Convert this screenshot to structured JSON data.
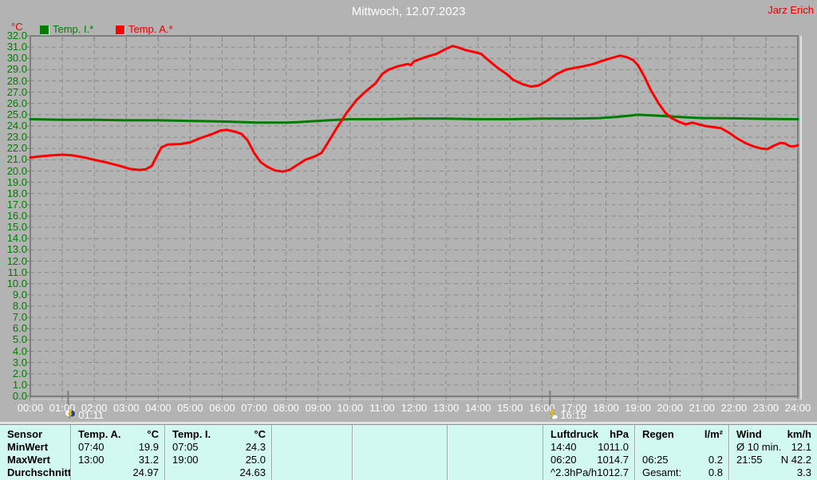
{
  "header": {
    "title": "Mittwoch, 12.07.2023",
    "author": "Jarz Erich"
  },
  "legend": [
    {
      "label": "Temp. I.*",
      "color": "#007c00"
    },
    {
      "label": "Temp. A.*",
      "color": "#ff0000"
    }
  ],
  "chart_data": {
    "type": "line",
    "title": "Mittwoch, 12.07.2023",
    "ylabel": "°C",
    "xlabel": "",
    "grid": true,
    "y_axis": {
      "min": 0,
      "max": 32,
      "step": 1
    },
    "x_axis": {
      "labels": [
        "00:00",
        "01:00",
        "02:00",
        "03:00",
        "04:00",
        "05:00",
        "06:00",
        "07:00",
        "08:00",
        "09:00",
        "10:00",
        "11:00",
        "12:00",
        "13:00",
        "14:00",
        "15:00",
        "16:00",
        "17:00",
        "18:00",
        "19:00",
        "20:00",
        "21:00",
        "22:00",
        "23:00",
        "24:00"
      ]
    },
    "series": [
      {
        "name": "Temp. I.*",
        "color": "#007c00",
        "points": [
          [
            0,
            24.6
          ],
          [
            1,
            24.55
          ],
          [
            2,
            24.55
          ],
          [
            3,
            24.5
          ],
          [
            4,
            24.5
          ],
          [
            5,
            24.45
          ],
          [
            6,
            24.4
          ],
          [
            6.6,
            24.35
          ],
          [
            7.1,
            24.3
          ],
          [
            7.6,
            24.3
          ],
          [
            8,
            24.3
          ],
          [
            8.4,
            24.35
          ],
          [
            9,
            24.45
          ],
          [
            9.6,
            24.55
          ],
          [
            10,
            24.6
          ],
          [
            11,
            24.6
          ],
          [
            12,
            24.65
          ],
          [
            13,
            24.65
          ],
          [
            14,
            24.6
          ],
          [
            15,
            24.6
          ],
          [
            16,
            24.65
          ],
          [
            17,
            24.65
          ],
          [
            17.8,
            24.7
          ],
          [
            18.3,
            24.8
          ],
          [
            18.7,
            24.9
          ],
          [
            19,
            25.0
          ],
          [
            19.4,
            24.95
          ],
          [
            20,
            24.85
          ],
          [
            20.6,
            24.75
          ],
          [
            21,
            24.7
          ],
          [
            22,
            24.68
          ],
          [
            23,
            24.63
          ],
          [
            24,
            24.6
          ]
        ]
      },
      {
        "name": "Temp. A.*",
        "color": "#ff0000",
        "points": [
          [
            0,
            21.2
          ],
          [
            0.3,
            21.3
          ],
          [
            0.7,
            21.4
          ],
          [
            1.0,
            21.45
          ],
          [
            1.3,
            21.4
          ],
          [
            1.7,
            21.2
          ],
          [
            2.0,
            21.0
          ],
          [
            2.4,
            20.75
          ],
          [
            2.8,
            20.45
          ],
          [
            3.1,
            20.2
          ],
          [
            3.4,
            20.1
          ],
          [
            3.6,
            20.15
          ],
          [
            3.8,
            20.45
          ],
          [
            3.95,
            21.3
          ],
          [
            4.1,
            22.1
          ],
          [
            4.3,
            22.35
          ],
          [
            4.7,
            22.4
          ],
          [
            5.0,
            22.55
          ],
          [
            5.3,
            22.9
          ],
          [
            5.7,
            23.3
          ],
          [
            5.95,
            23.6
          ],
          [
            6.15,
            23.65
          ],
          [
            6.4,
            23.5
          ],
          [
            6.6,
            23.3
          ],
          [
            6.8,
            22.7
          ],
          [
            7.0,
            21.6
          ],
          [
            7.2,
            20.8
          ],
          [
            7.4,
            20.4
          ],
          [
            7.65,
            20.05
          ],
          [
            7.9,
            19.95
          ],
          [
            8.1,
            20.1
          ],
          [
            8.3,
            20.45
          ],
          [
            8.6,
            21.0
          ],
          [
            8.9,
            21.3
          ],
          [
            9.1,
            21.6
          ],
          [
            9.3,
            22.5
          ],
          [
            9.6,
            23.9
          ],
          [
            9.9,
            25.2
          ],
          [
            10.2,
            26.3
          ],
          [
            10.5,
            27.1
          ],
          [
            10.8,
            27.8
          ],
          [
            11.0,
            28.6
          ],
          [
            11.2,
            29.0
          ],
          [
            11.5,
            29.3
          ],
          [
            11.8,
            29.5
          ],
          [
            11.9,
            29.4
          ],
          [
            12.0,
            29.75
          ],
          [
            12.4,
            30.15
          ],
          [
            12.7,
            30.4
          ],
          [
            13.0,
            30.85
          ],
          [
            13.2,
            31.1
          ],
          [
            13.35,
            31.0
          ],
          [
            13.6,
            30.75
          ],
          [
            13.9,
            30.55
          ],
          [
            14.1,
            30.4
          ],
          [
            14.3,
            29.9
          ],
          [
            14.6,
            29.2
          ],
          [
            14.9,
            28.6
          ],
          [
            15.1,
            28.1
          ],
          [
            15.4,
            27.7
          ],
          [
            15.65,
            27.5
          ],
          [
            15.9,
            27.6
          ],
          [
            16.15,
            28.0
          ],
          [
            16.45,
            28.6
          ],
          [
            16.75,
            29.0
          ],
          [
            17.0,
            29.15
          ],
          [
            17.3,
            29.3
          ],
          [
            17.6,
            29.5
          ],
          [
            17.9,
            29.8
          ],
          [
            18.2,
            30.05
          ],
          [
            18.45,
            30.25
          ],
          [
            18.65,
            30.1
          ],
          [
            18.85,
            29.85
          ],
          [
            19.0,
            29.4
          ],
          [
            19.2,
            28.4
          ],
          [
            19.4,
            27.2
          ],
          [
            19.65,
            26.0
          ],
          [
            19.85,
            25.2
          ],
          [
            20.05,
            24.7
          ],
          [
            20.3,
            24.35
          ],
          [
            20.5,
            24.15
          ],
          [
            20.7,
            24.3
          ],
          [
            20.9,
            24.15
          ],
          [
            21.1,
            24.0
          ],
          [
            21.35,
            23.9
          ],
          [
            21.6,
            23.8
          ],
          [
            21.85,
            23.4
          ],
          [
            22.1,
            22.9
          ],
          [
            22.35,
            22.5
          ],
          [
            22.6,
            22.2
          ],
          [
            22.85,
            22.0
          ],
          [
            23.05,
            21.95
          ],
          [
            23.25,
            22.25
          ],
          [
            23.45,
            22.5
          ],
          [
            23.6,
            22.45
          ],
          [
            23.75,
            22.2
          ],
          [
            23.9,
            22.2
          ],
          [
            24,
            22.3
          ]
        ]
      }
    ],
    "markers": [
      {
        "time": "01:11",
        "hour": 1.1833,
        "icon": "night-storm"
      },
      {
        "time": "16:15",
        "hour": 16.25,
        "icon": "storm"
      }
    ]
  },
  "table": {
    "row_headers": [
      "Sensor",
      "MinWert",
      "MaxWert",
      "Durchschnitt"
    ],
    "columns": [
      {
        "header": "Temp. A.",
        "unit": "°C",
        "min": [
          "07:40",
          "19.9"
        ],
        "max": [
          "13:00",
          "31.2"
        ],
        "avg": [
          "",
          "24.97"
        ]
      },
      {
        "header": "Temp. I.",
        "unit": "°C",
        "min": [
          "07:05",
          "24.3"
        ],
        "max": [
          "19:00",
          "25.0"
        ],
        "avg": [
          "",
          "24.63"
        ]
      },
      {
        "header": "",
        "unit": "",
        "min": [
          "",
          ""
        ],
        "max": [
          "",
          ""
        ],
        "avg": [
          "",
          ""
        ]
      },
      {
        "header": "",
        "unit": "",
        "min": [
          "",
          ""
        ],
        "max": [
          "",
          ""
        ],
        "avg": [
          "",
          ""
        ]
      },
      {
        "header": "",
        "unit": "",
        "min": [
          "",
          ""
        ],
        "max": [
          "",
          ""
        ],
        "avg": [
          "",
          ""
        ]
      },
      {
        "header": "Luftdruck",
        "unit": "hPa",
        "min": [
          "14:40",
          "1011.0"
        ],
        "max": [
          "06:20",
          "1014.7"
        ],
        "avg": [
          "^2.3hPa/h",
          "1012.7"
        ]
      },
      {
        "header": "Regen",
        "unit": "l/m²",
        "min": [
          "",
          ""
        ],
        "max": [
          "06:25",
          "0.2"
        ],
        "avg": [
          "Gesamt:",
          "0.8"
        ]
      },
      {
        "header": "Wind",
        "unit": "km/h",
        "min": [
          "Ø 10 min.",
          "12.1"
        ],
        "max": [
          "21:55",
          "N 42.2"
        ],
        "avg": [
          "",
          "3.3"
        ]
      }
    ]
  }
}
